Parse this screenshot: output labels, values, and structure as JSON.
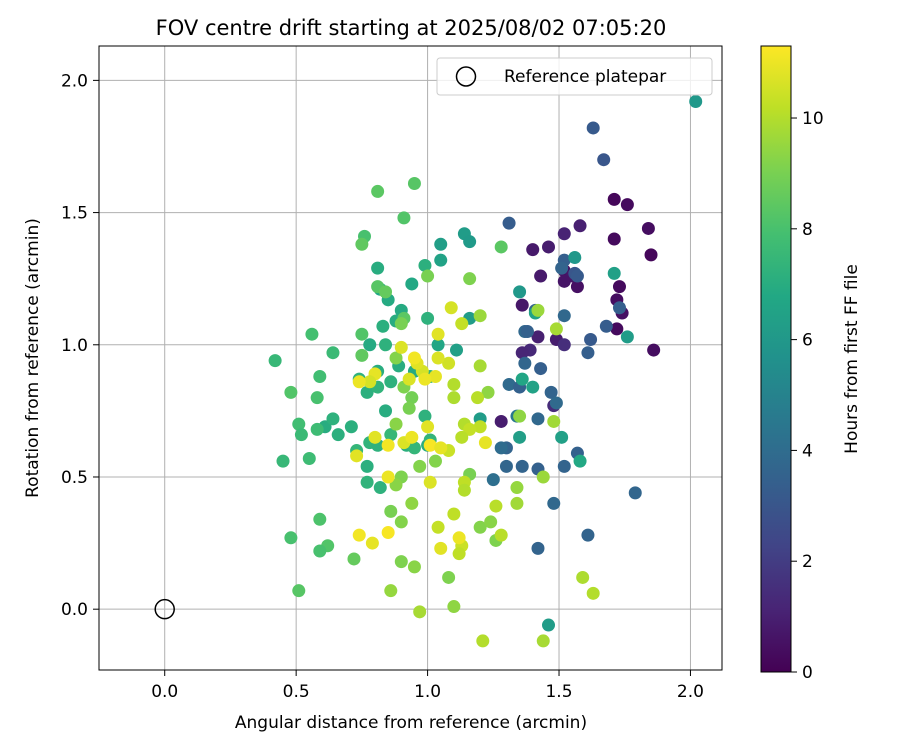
{
  "chart_data": {
    "type": "scatter",
    "title": "FOV centre drift starting at 2025/08/02 07:05:20",
    "xlabel": "Angular distance from reference (arcmin)",
    "ylabel": "Rotation from reference (arcmin)",
    "xlim": [
      -0.25,
      2.12
    ],
    "ylim": [
      -0.23,
      2.13
    ],
    "xticks": [
      0.0,
      0.5,
      1.0,
      1.5,
      2.0
    ],
    "yticks": [
      0.0,
      0.5,
      1.0,
      1.5,
      2.0
    ],
    "xtick_labels": [
      "0.0",
      "0.5",
      "1.0",
      "1.5",
      "2.0"
    ],
    "ytick_labels": [
      "0.0",
      "0.5",
      "1.0",
      "1.5",
      "2.0"
    ],
    "grid": true,
    "legend": {
      "position": "top-right",
      "entries": [
        {
          "label": "Reference platepar",
          "marker": "open-circle"
        }
      ]
    },
    "reference_point": {
      "x": 0.0,
      "y": 0.0
    },
    "colorbar": {
      "label": "Hours from first FF file",
      "colormap": "viridis",
      "range": [
        0,
        11.3
      ],
      "ticks": [
        0,
        2,
        4,
        6,
        8,
        10
      ],
      "tick_labels": [
        "0",
        "2",
        "4",
        "6",
        "8",
        "10"
      ]
    },
    "points": [
      {
        "x": 1.71,
        "y": 1.55,
        "c": 0.2
      },
      {
        "x": 1.76,
        "y": 1.53,
        "c": 0.3
      },
      {
        "x": 1.71,
        "y": 1.4,
        "c": 0.3
      },
      {
        "x": 1.84,
        "y": 1.44,
        "c": 0.4
      },
      {
        "x": 1.85,
        "y": 1.34,
        "c": 0.2
      },
      {
        "x": 1.73,
        "y": 1.22,
        "c": 0.3
      },
      {
        "x": 1.72,
        "y": 1.17,
        "c": 0.4
      },
      {
        "x": 1.74,
        "y": 1.12,
        "c": 0.5
      },
      {
        "x": 1.72,
        "y": 1.06,
        "c": 0.3
      },
      {
        "x": 1.86,
        "y": 0.98,
        "c": 0.4
      },
      {
        "x": 1.52,
        "y": 1.28,
        "c": 0.5
      },
      {
        "x": 1.55,
        "y": 1.26,
        "c": 0.7
      },
      {
        "x": 1.43,
        "y": 1.26,
        "c": 0.8
      },
      {
        "x": 1.52,
        "y": 1.24,
        "c": 0.6
      },
      {
        "x": 1.57,
        "y": 1.22,
        "c": 0.5
      },
      {
        "x": 1.36,
        "y": 1.15,
        "c": 0.7
      },
      {
        "x": 1.4,
        "y": 1.36,
        "c": 0.8
      },
      {
        "x": 1.46,
        "y": 1.37,
        "c": 0.9
      },
      {
        "x": 1.52,
        "y": 1.42,
        "c": 1.1
      },
      {
        "x": 1.58,
        "y": 1.45,
        "c": 1.0
      },
      {
        "x": 1.42,
        "y": 1.03,
        "c": 1.0
      },
      {
        "x": 1.49,
        "y": 1.02,
        "c": 0.9
      },
      {
        "x": 1.39,
        "y": 0.98,
        "c": 1.3
      },
      {
        "x": 1.36,
        "y": 0.97,
        "c": 1.2
      },
      {
        "x": 1.48,
        "y": 0.77,
        "c": 1.4
      },
      {
        "x": 1.28,
        "y": 0.71,
        "c": 0.9
      },
      {
        "x": 1.52,
        "y": 1.0,
        "c": 1.5
      },
      {
        "x": 1.63,
        "y": 1.82,
        "c": 3.2
      },
      {
        "x": 1.67,
        "y": 1.7,
        "c": 3.0
      },
      {
        "x": 1.31,
        "y": 1.46,
        "c": 3.3
      },
      {
        "x": 1.52,
        "y": 1.32,
        "c": 3.4
      },
      {
        "x": 1.51,
        "y": 1.29,
        "c": 3.6
      },
      {
        "x": 1.56,
        "y": 1.27,
        "c": 3.0
      },
      {
        "x": 1.57,
        "y": 1.26,
        "c": 3.2
      },
      {
        "x": 1.41,
        "y": 1.13,
        "c": 3.6
      },
      {
        "x": 1.52,
        "y": 1.11,
        "c": 3.8
      },
      {
        "x": 1.73,
        "y": 1.14,
        "c": 3.4
      },
      {
        "x": 1.68,
        "y": 1.07,
        "c": 3.3
      },
      {
        "x": 1.37,
        "y": 1.05,
        "c": 3.8
      },
      {
        "x": 1.38,
        "y": 1.05,
        "c": 3.5
      },
      {
        "x": 1.62,
        "y": 1.02,
        "c": 3.2
      },
      {
        "x": 1.61,
        "y": 0.97,
        "c": 3.4
      },
      {
        "x": 1.37,
        "y": 0.93,
        "c": 3.7
      },
      {
        "x": 1.43,
        "y": 0.91,
        "c": 3.4
      },
      {
        "x": 1.31,
        "y": 0.85,
        "c": 3.9
      },
      {
        "x": 1.35,
        "y": 0.84,
        "c": 3.5
      },
      {
        "x": 1.47,
        "y": 0.82,
        "c": 3.6
      },
      {
        "x": 1.49,
        "y": 0.78,
        "c": 3.9
      },
      {
        "x": 1.42,
        "y": 0.72,
        "c": 3.8
      },
      {
        "x": 1.3,
        "y": 0.61,
        "c": 3.6
      },
      {
        "x": 1.28,
        "y": 0.61,
        "c": 4.0
      },
      {
        "x": 1.3,
        "y": 0.54,
        "c": 3.7
      },
      {
        "x": 1.36,
        "y": 0.54,
        "c": 3.6
      },
      {
        "x": 1.42,
        "y": 0.53,
        "c": 3.5
      },
      {
        "x": 1.52,
        "y": 0.54,
        "c": 3.6
      },
      {
        "x": 1.57,
        "y": 0.59,
        "c": 3.5
      },
      {
        "x": 1.48,
        "y": 0.4,
        "c": 3.8
      },
      {
        "x": 1.61,
        "y": 0.28,
        "c": 3.6
      },
      {
        "x": 1.42,
        "y": 0.23,
        "c": 3.6
      },
      {
        "x": 1.79,
        "y": 0.44,
        "c": 3.7
      },
      {
        "x": 1.25,
        "y": 0.49,
        "c": 4.1
      },
      {
        "x": 1.34,
        "y": 0.73,
        "c": 4.5
      },
      {
        "x": 2.02,
        "y": 1.92,
        "c": 6.0
      },
      {
        "x": 1.14,
        "y": 1.42,
        "c": 6.2
      },
      {
        "x": 1.16,
        "y": 1.39,
        "c": 6.1
      },
      {
        "x": 1.05,
        "y": 1.38,
        "c": 6.3
      },
      {
        "x": 1.05,
        "y": 1.32,
        "c": 6.5
      },
      {
        "x": 1.71,
        "y": 1.27,
        "c": 6.4
      },
      {
        "x": 1.56,
        "y": 1.33,
        "c": 6.0
      },
      {
        "x": 1.35,
        "y": 1.2,
        "c": 6.0
      },
      {
        "x": 1.41,
        "y": 1.12,
        "c": 6.5
      },
      {
        "x": 1.16,
        "y": 1.1,
        "c": 6.2
      },
      {
        "x": 1.76,
        "y": 1.03,
        "c": 6.2
      },
      {
        "x": 1.11,
        "y": 0.98,
        "c": 6.4
      },
      {
        "x": 1.36,
        "y": 0.87,
        "c": 6.7
      },
      {
        "x": 1.4,
        "y": 0.84,
        "c": 6.5
      },
      {
        "x": 1.35,
        "y": 0.65,
        "c": 6.3
      },
      {
        "x": 1.51,
        "y": 0.65,
        "c": 6.4
      },
      {
        "x": 1.46,
        "y": -0.06,
        "c": 6.2
      },
      {
        "x": 1.58,
        "y": 0.56,
        "c": 6.8
      },
      {
        "x": 1.2,
        "y": 0.72,
        "c": 6.2
      },
      {
        "x": 1.04,
        "y": 1.0,
        "c": 6.7
      },
      {
        "x": 0.82,
        "y": 1.21,
        "c": 6.8
      },
      {
        "x": 0.81,
        "y": 1.29,
        "c": 7.0
      },
      {
        "x": 0.85,
        "y": 1.17,
        "c": 6.9
      },
      {
        "x": 0.94,
        "y": 1.23,
        "c": 6.8
      },
      {
        "x": 0.99,
        "y": 1.3,
        "c": 7.1
      },
      {
        "x": 0.88,
        "y": 1.09,
        "c": 7.0
      },
      {
        "x": 0.9,
        "y": 1.13,
        "c": 6.9
      },
      {
        "x": 1.0,
        "y": 1.1,
        "c": 7.2
      },
      {
        "x": 0.83,
        "y": 1.07,
        "c": 7.1
      },
      {
        "x": 0.78,
        "y": 1.0,
        "c": 6.9
      },
      {
        "x": 0.84,
        "y": 1.0,
        "c": 7.2
      },
      {
        "x": 0.89,
        "y": 0.92,
        "c": 7.0
      },
      {
        "x": 0.81,
        "y": 0.9,
        "c": 7.0
      },
      {
        "x": 0.86,
        "y": 0.86,
        "c": 7.2
      },
      {
        "x": 0.95,
        "y": 0.9,
        "c": 6.9
      },
      {
        "x": 1.01,
        "y": 0.88,
        "c": 7.3
      },
      {
        "x": 0.74,
        "y": 0.87,
        "c": 7.2
      },
      {
        "x": 0.77,
        "y": 0.82,
        "c": 7.1
      },
      {
        "x": 0.81,
        "y": 0.84,
        "c": 7.3
      },
      {
        "x": 0.84,
        "y": 0.75,
        "c": 7.0
      },
      {
        "x": 0.71,
        "y": 0.69,
        "c": 7.1
      },
      {
        "x": 0.61,
        "y": 0.69,
        "c": 7.0
      },
      {
        "x": 0.64,
        "y": 0.72,
        "c": 7.2
      },
      {
        "x": 0.66,
        "y": 0.66,
        "c": 7.1
      },
      {
        "x": 0.73,
        "y": 0.6,
        "c": 7.4
      },
      {
        "x": 0.78,
        "y": 0.63,
        "c": 7.3
      },
      {
        "x": 0.81,
        "y": 0.62,
        "c": 7.2
      },
      {
        "x": 0.86,
        "y": 0.66,
        "c": 7.5
      },
      {
        "x": 0.92,
        "y": 0.62,
        "c": 7.1
      },
      {
        "x": 0.95,
        "y": 0.61,
        "c": 7.4
      },
      {
        "x": 0.99,
        "y": 0.73,
        "c": 7.2
      },
      {
        "x": 1.0,
        "y": 0.62,
        "c": 7.0
      },
      {
        "x": 1.01,
        "y": 0.64,
        "c": 7.3
      },
      {
        "x": 0.77,
        "y": 0.54,
        "c": 7.1
      },
      {
        "x": 0.82,
        "y": 0.46,
        "c": 7.2
      },
      {
        "x": 0.77,
        "y": 0.48,
        "c": 7.3
      },
      {
        "x": 0.58,
        "y": 0.68,
        "c": 7.7
      },
      {
        "x": 0.55,
        "y": 0.57,
        "c": 7.7
      },
      {
        "x": 0.45,
        "y": 0.56,
        "c": 7.5
      },
      {
        "x": 0.42,
        "y": 0.94,
        "c": 7.5
      },
      {
        "x": 0.56,
        "y": 1.04,
        "c": 7.9
      },
      {
        "x": 0.59,
        "y": 0.88,
        "c": 7.8
      },
      {
        "x": 0.64,
        "y": 0.97,
        "c": 7.6
      },
      {
        "x": 0.51,
        "y": 0.7,
        "c": 7.8
      },
      {
        "x": 0.52,
        "y": 0.66,
        "c": 7.6
      },
      {
        "x": 0.58,
        "y": 0.8,
        "c": 8.0
      },
      {
        "x": 0.59,
        "y": 0.34,
        "c": 8.1
      },
      {
        "x": 0.62,
        "y": 0.24,
        "c": 8.2
      },
      {
        "x": 0.59,
        "y": 0.22,
        "c": 8.0
      },
      {
        "x": 0.48,
        "y": 0.27,
        "c": 8.0
      },
      {
        "x": 0.51,
        "y": 0.07,
        "c": 8.3
      },
      {
        "x": 0.48,
        "y": 0.82,
        "c": 8.2
      },
      {
        "x": 0.76,
        "y": 1.41,
        "c": 8.0
      },
      {
        "x": 0.81,
        "y": 1.58,
        "c": 8.4
      },
      {
        "x": 0.95,
        "y": 1.61,
        "c": 8.3
      },
      {
        "x": 0.91,
        "y": 1.48,
        "c": 8.2
      },
      {
        "x": 0.75,
        "y": 1.38,
        "c": 8.5
      },
      {
        "x": 0.81,
        "y": 1.22,
        "c": 8.3
      },
      {
        "x": 0.84,
        "y": 1.2,
        "c": 8.6
      },
      {
        "x": 0.91,
        "y": 1.1,
        "c": 8.4
      },
      {
        "x": 0.75,
        "y": 1.04,
        "c": 8.2
      },
      {
        "x": 0.75,
        "y": 0.96,
        "c": 8.5
      },
      {
        "x": 1.28,
        "y": 1.37,
        "c": 8.4
      },
      {
        "x": 0.72,
        "y": 0.19,
        "c": 8.6
      },
      {
        "x": 1.0,
        "y": 1.26,
        "c": 9.0
      },
      {
        "x": 1.16,
        "y": 1.25,
        "c": 9.1
      },
      {
        "x": 0.9,
        "y": 1.08,
        "c": 9.0
      },
      {
        "x": 0.88,
        "y": 0.95,
        "c": 9.2
      },
      {
        "x": 0.91,
        "y": 0.84,
        "c": 9.1
      },
      {
        "x": 0.94,
        "y": 0.8,
        "c": 8.9
      },
      {
        "x": 0.88,
        "y": 0.7,
        "c": 9.3
      },
      {
        "x": 0.93,
        "y": 0.76,
        "c": 9.0
      },
      {
        "x": 0.97,
        "y": 0.54,
        "c": 9.2
      },
      {
        "x": 0.9,
        "y": 0.5,
        "c": 9.1
      },
      {
        "x": 0.88,
        "y": 0.47,
        "c": 9.3
      },
      {
        "x": 0.86,
        "y": 0.37,
        "c": 9.0
      },
      {
        "x": 0.9,
        "y": 0.33,
        "c": 9.2
      },
      {
        "x": 0.94,
        "y": 0.4,
        "c": 9.4
      },
      {
        "x": 0.9,
        "y": 0.18,
        "c": 9.1
      },
      {
        "x": 0.95,
        "y": 0.16,
        "c": 9.3
      },
      {
        "x": 0.86,
        "y": 0.07,
        "c": 9.5
      },
      {
        "x": 1.03,
        "y": 0.56,
        "c": 9.2
      },
      {
        "x": 1.08,
        "y": 0.12,
        "c": 9.1
      },
      {
        "x": 1.1,
        "y": 0.01,
        "c": 9.4
      },
      {
        "x": 1.16,
        "y": 0.51,
        "c": 9.0
      },
      {
        "x": 1.2,
        "y": 0.31,
        "c": 9.2
      },
      {
        "x": 1.24,
        "y": 0.33,
        "c": 9.3
      },
      {
        "x": 1.26,
        "y": 0.26,
        "c": 9.1
      },
      {
        "x": 1.23,
        "y": 0.82,
        "c": 9.4
      },
      {
        "x": 1.34,
        "y": 0.46,
        "c": 9.5
      },
      {
        "x": 1.34,
        "y": 0.4,
        "c": 9.7
      },
      {
        "x": 1.44,
        "y": 0.5,
        "c": 9.6
      },
      {
        "x": 1.35,
        "y": 0.73,
        "c": 9.4
      },
      {
        "x": 1.49,
        "y": 1.06,
        "c": 9.8
      },
      {
        "x": 1.42,
        "y": 1.13,
        "c": 9.6
      },
      {
        "x": 1.2,
        "y": 1.11,
        "c": 9.6
      },
      {
        "x": 1.59,
        "y": 0.12,
        "c": 9.9
      },
      {
        "x": 1.63,
        "y": 0.06,
        "c": 10.0
      },
      {
        "x": 1.44,
        "y": -0.12,
        "c": 9.8
      },
      {
        "x": 1.21,
        "y": -0.12,
        "c": 10.0
      },
      {
        "x": 0.97,
        "y": -0.01,
        "c": 9.8
      },
      {
        "x": 1.48,
        "y": 0.71,
        "c": 9.7
      },
      {
        "x": 1.2,
        "y": 0.92,
        "c": 9.8
      },
      {
        "x": 1.1,
        "y": 0.85,
        "c": 10.0
      },
      {
        "x": 1.19,
        "y": 0.8,
        "c": 10.1
      },
      {
        "x": 1.1,
        "y": 0.8,
        "c": 9.9
      },
      {
        "x": 1.14,
        "y": 0.7,
        "c": 10.0
      },
      {
        "x": 1.2,
        "y": 0.69,
        "c": 10.2
      },
      {
        "x": 1.26,
        "y": 0.39,
        "c": 10.1
      },
      {
        "x": 1.16,
        "y": 0.68,
        "c": 10.3
      },
      {
        "x": 1.13,
        "y": 0.65,
        "c": 10.1
      },
      {
        "x": 1.08,
        "y": 0.6,
        "c": 10.4
      },
      {
        "x": 1.14,
        "y": 0.48,
        "c": 10.2
      },
      {
        "x": 1.14,
        "y": 0.45,
        "c": 10.0
      },
      {
        "x": 1.04,
        "y": 0.31,
        "c": 10.3
      },
      {
        "x": 1.1,
        "y": 0.36,
        "c": 10.2
      },
      {
        "x": 1.13,
        "y": 0.24,
        "c": 10.4
      },
      {
        "x": 1.12,
        "y": 0.21,
        "c": 10.2
      },
      {
        "x": 1.28,
        "y": 0.28,
        "c": 10.1
      },
      {
        "x": 1.13,
        "y": 1.08,
        "c": 10.3
      },
      {
        "x": 1.09,
        "y": 1.14,
        "c": 10.6
      },
      {
        "x": 1.04,
        "y": 1.04,
        "c": 10.8
      },
      {
        "x": 1.08,
        "y": 0.93,
        "c": 10.5
      },
      {
        "x": 1.04,
        "y": 0.95,
        "c": 10.7
      },
      {
        "x": 1.03,
        "y": 0.88,
        "c": 10.9
      },
      {
        "x": 0.98,
        "y": 0.9,
        "c": 10.6
      },
      {
        "x": 0.96,
        "y": 0.93,
        "c": 10.8
      },
      {
        "x": 0.99,
        "y": 0.87,
        "c": 11.0
      },
      {
        "x": 0.93,
        "y": 0.87,
        "c": 10.7
      },
      {
        "x": 0.95,
        "y": 0.95,
        "c": 11.1
      },
      {
        "x": 0.8,
        "y": 0.89,
        "c": 10.9
      },
      {
        "x": 0.78,
        "y": 0.86,
        "c": 10.6
      },
      {
        "x": 0.74,
        "y": 0.86,
        "c": 11.0
      },
      {
        "x": 0.8,
        "y": 0.65,
        "c": 10.8
      },
      {
        "x": 0.85,
        "y": 0.62,
        "c": 11.1
      },
      {
        "x": 0.91,
        "y": 0.63,
        "c": 10.7
      },
      {
        "x": 0.94,
        "y": 0.65,
        "c": 11.0
      },
      {
        "x": 1.0,
        "y": 0.69,
        "c": 10.8
      },
      {
        "x": 1.01,
        "y": 0.62,
        "c": 11.2
      },
      {
        "x": 1.05,
        "y": 0.61,
        "c": 10.9
      },
      {
        "x": 1.01,
        "y": 0.48,
        "c": 10.7
      },
      {
        "x": 0.85,
        "y": 0.5,
        "c": 11.0
      },
      {
        "x": 0.73,
        "y": 0.58,
        "c": 10.8
      },
      {
        "x": 0.74,
        "y": 0.28,
        "c": 11.1
      },
      {
        "x": 0.79,
        "y": 0.25,
        "c": 10.9
      },
      {
        "x": 0.85,
        "y": 0.29,
        "c": 11.2
      },
      {
        "x": 1.05,
        "y": 0.23,
        "c": 10.8
      },
      {
        "x": 1.12,
        "y": 0.27,
        "c": 11.0
      },
      {
        "x": 1.22,
        "y": 0.63,
        "c": 10.9
      },
      {
        "x": 0.9,
        "y": 0.99,
        "c": 10.7
      }
    ]
  }
}
